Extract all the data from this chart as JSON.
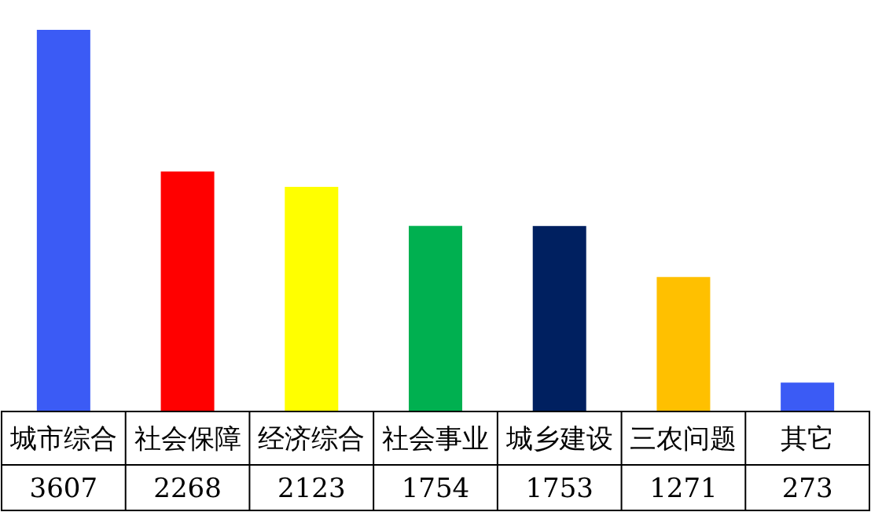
{
  "chart_data": {
    "type": "bar",
    "categories": [
      "城市综合",
      "社会保障",
      "经济综合",
      "社会事业",
      "城乡建设",
      "三农问题",
      "其它"
    ],
    "values": [
      3607,
      2268,
      2123,
      1754,
      1753,
      1271,
      273
    ],
    "colors": [
      "#3b5bf5",
      "#ff0000",
      "#ffff00",
      "#00b050",
      "#002060",
      "#ffc000",
      "#3b5bf5"
    ],
    "data_labels": true
  }
}
